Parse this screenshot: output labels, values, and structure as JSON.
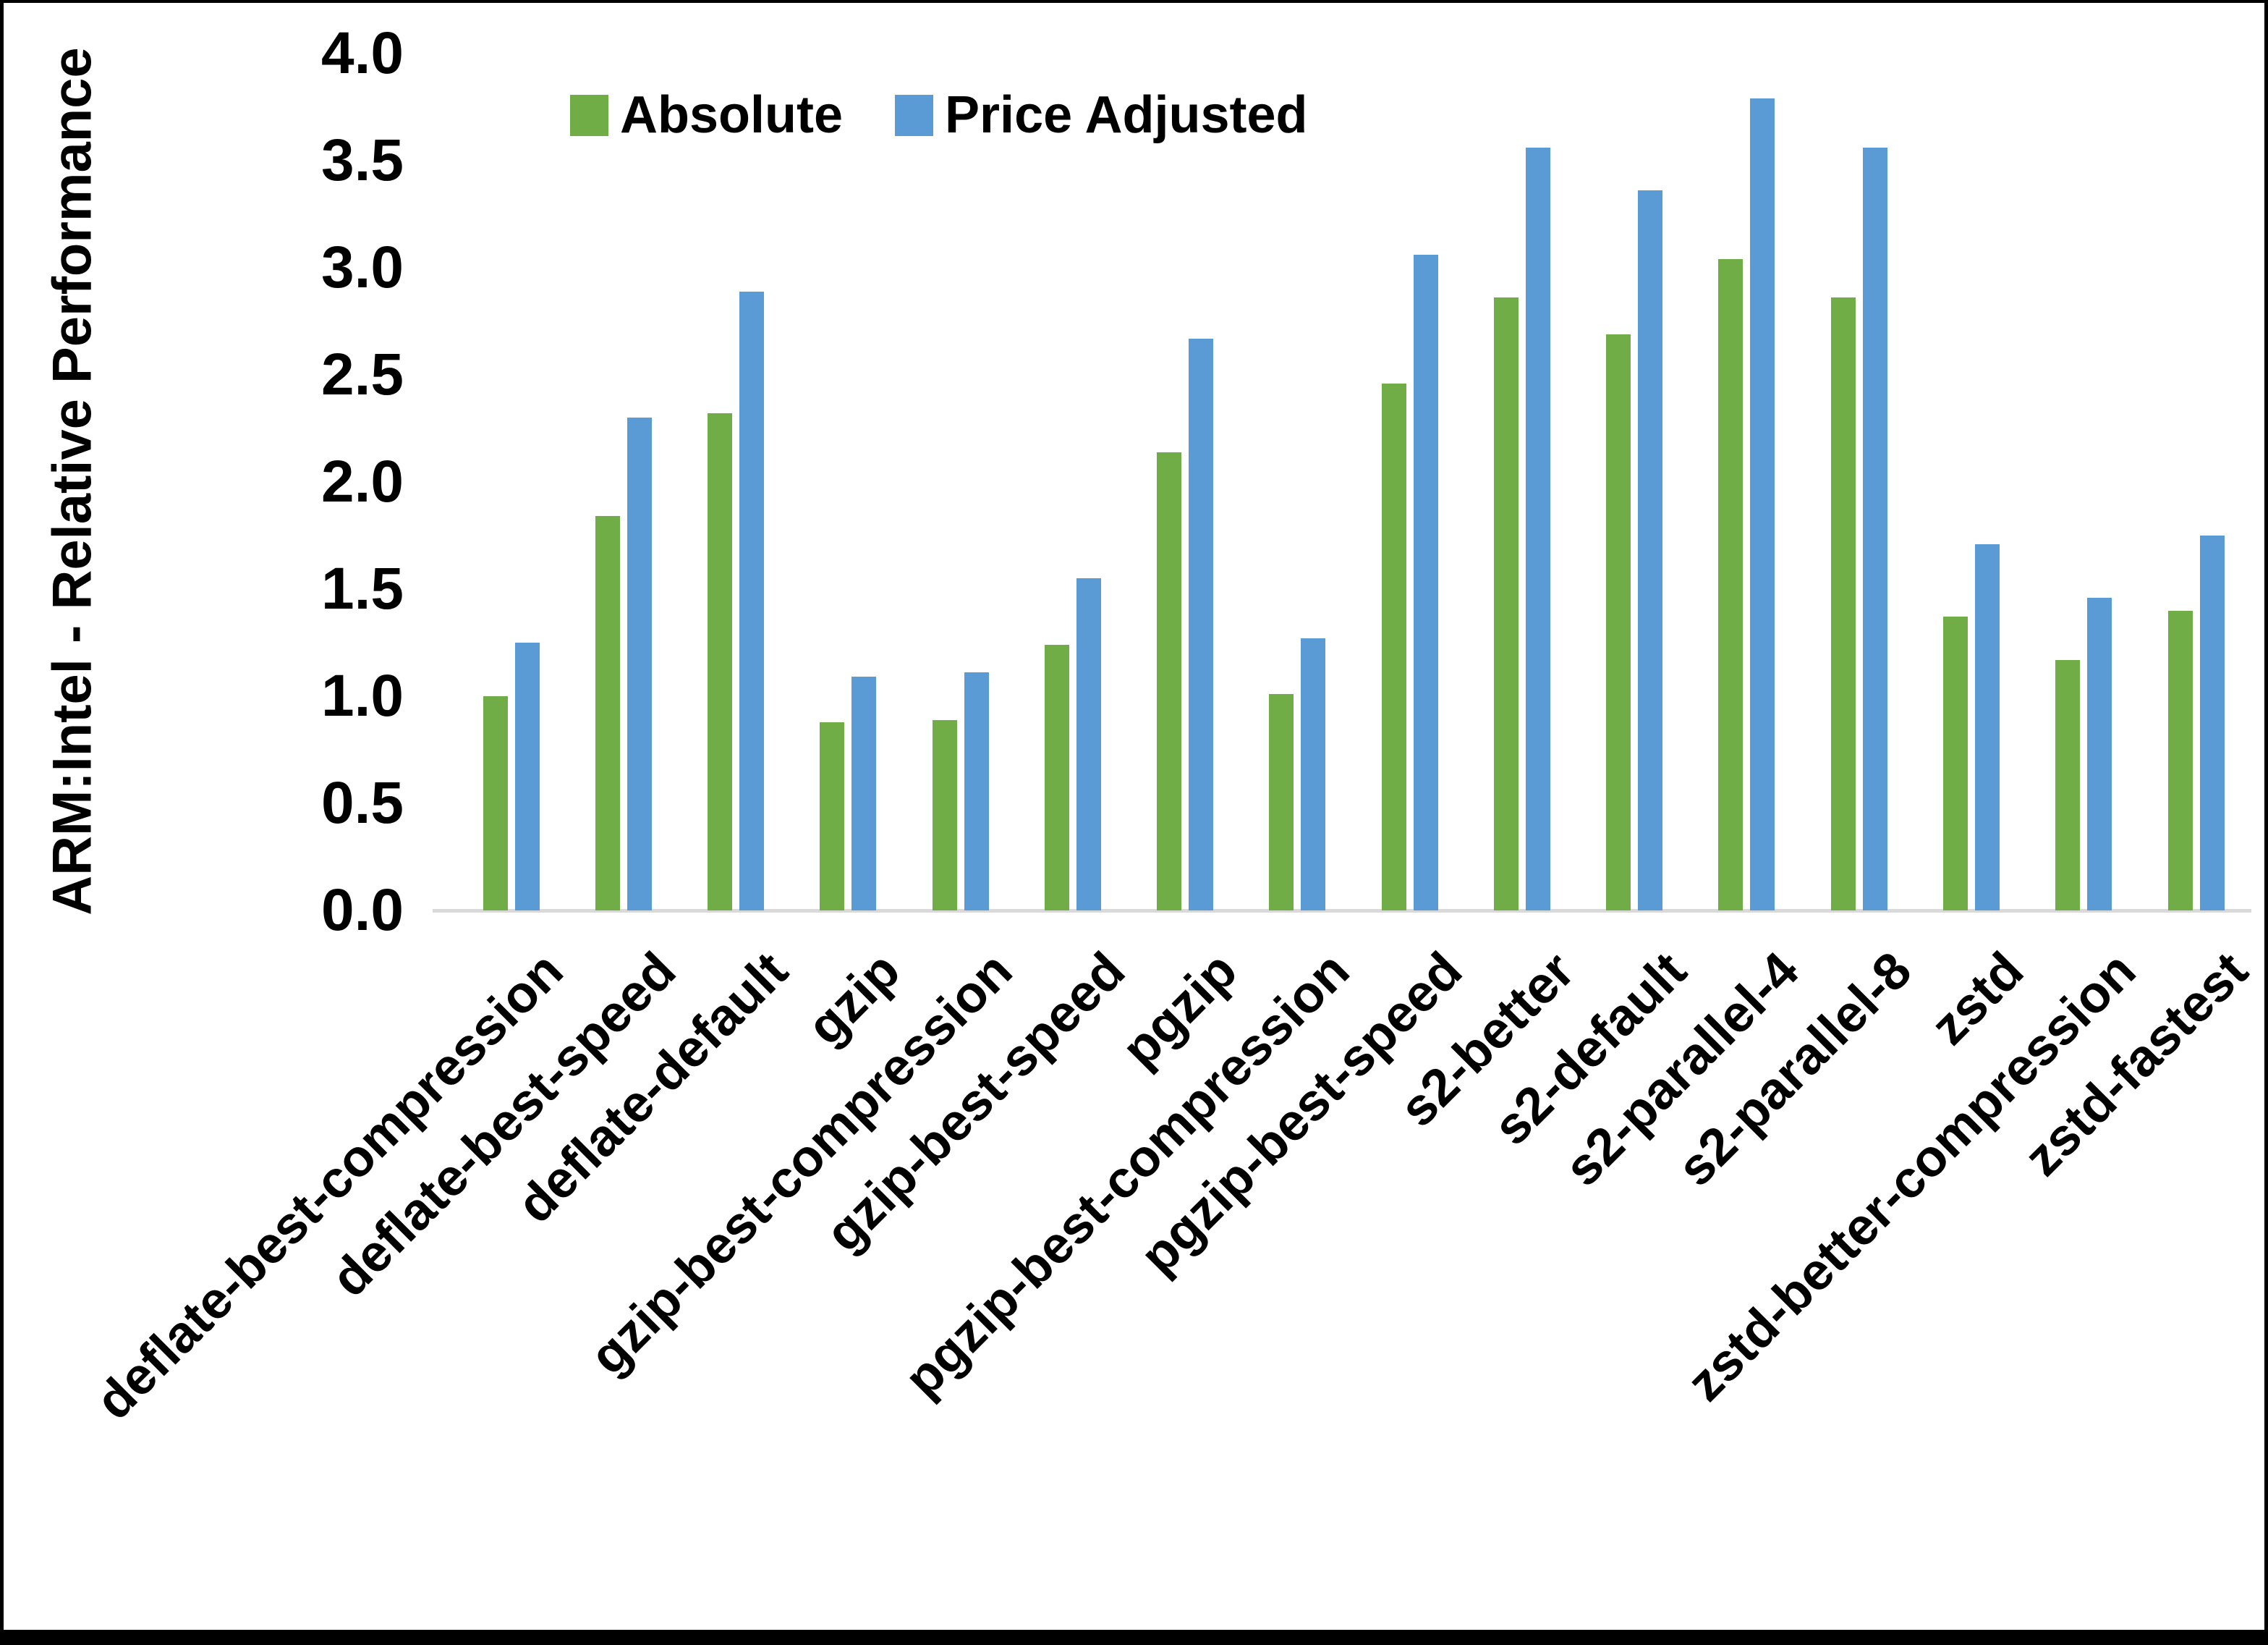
{
  "chart_data": {
    "type": "bar",
    "title": "",
    "xlabel": "",
    "ylabel": "ARM:Intel - Relative Performance",
    "ylim": [
      0.0,
      4.0
    ],
    "y_tick_step": 0.5,
    "y_tick_labels": [
      "0.0",
      "0.5",
      "1.0",
      "1.5",
      "2.0",
      "2.5",
      "3.0",
      "3.5",
      "4.0"
    ],
    "grid": false,
    "legend_position": "top-center",
    "categories": [
      "deflate-best-compression",
      "deflate-best-speed",
      "deflate-default",
      "gzip",
      "gzip-best-compression",
      "gzip-best-speed",
      "pgzip",
      "pgzip-best-compression",
      "pgzip-best-speed",
      "s2-better",
      "s2-default",
      "s2-parallel-4",
      "s2-parallel-8",
      "zstd",
      "zstd-better-compression",
      "zstd-fastest"
    ],
    "series": [
      {
        "name": "Absolute",
        "color": "#70AD47",
        "values": [
          1.0,
          1.84,
          2.32,
          0.88,
          0.89,
          1.24,
          2.14,
          1.01,
          2.46,
          2.86,
          2.69,
          3.04,
          2.86,
          1.37,
          1.17,
          1.4
        ]
      },
      {
        "name": "Price Adjusted",
        "color": "#5B9BD5",
        "values": [
          1.25,
          2.3,
          2.89,
          1.09,
          1.11,
          1.55,
          2.67,
          1.27,
          3.06,
          3.56,
          3.36,
          3.79,
          3.56,
          1.71,
          1.46,
          1.75
        ]
      }
    ]
  },
  "colors": {
    "background": "#FFFFFF",
    "axis_line": "#D9D9D9",
    "text": "#000000",
    "frame": "#000000"
  }
}
